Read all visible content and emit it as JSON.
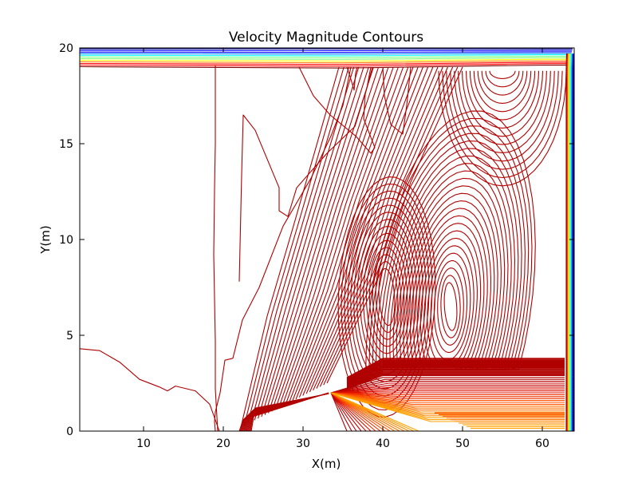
{
  "chart_data": {
    "type": "contour",
    "title": "Velocity Magnitude Contours",
    "xlabel": "X(m)",
    "ylabel": "Y(m)",
    "xlim": [
      2,
      64
    ],
    "ylim": [
      0,
      20
    ],
    "x_ticks": [
      10,
      20,
      30,
      40,
      50,
      60
    ],
    "y_ticks": [
      0,
      5,
      10,
      15,
      20
    ],
    "x_tick_labels": [
      "10",
      "20",
      "30",
      "40",
      "50",
      "60"
    ],
    "y_tick_labels": [
      "0",
      "5",
      "10",
      "15",
      "20"
    ],
    "grid": false,
    "legend": "none",
    "colormap": "jet",
    "colormap_colors": [
      "#00007f",
      "#0000ff",
      "#007fff",
      "#00ffff",
      "#7fff7f",
      "#ffff00",
      "#ff7f00",
      "#ff0000",
      "#7f0000"
    ],
    "contour_color_low": "#b00000",
    "obstacle_vertex": [
      33.5,
      2
    ],
    "features": [
      {
        "name": "lid-shear-layer",
        "y_range": [
          19.0,
          20.0
        ],
        "levels": 12
      },
      {
        "name": "right-wall-boundary-layer",
        "x_range": [
          63.0,
          64.0
        ],
        "levels": 10
      },
      {
        "name": "vortex-center-1",
        "x": 48.5,
        "y": 6.5
      },
      {
        "name": "vortex-center-2",
        "x": 40.5,
        "y": 7.0
      },
      {
        "name": "top-right-loop",
        "x": 55.0,
        "y": 18.8
      }
    ]
  }
}
